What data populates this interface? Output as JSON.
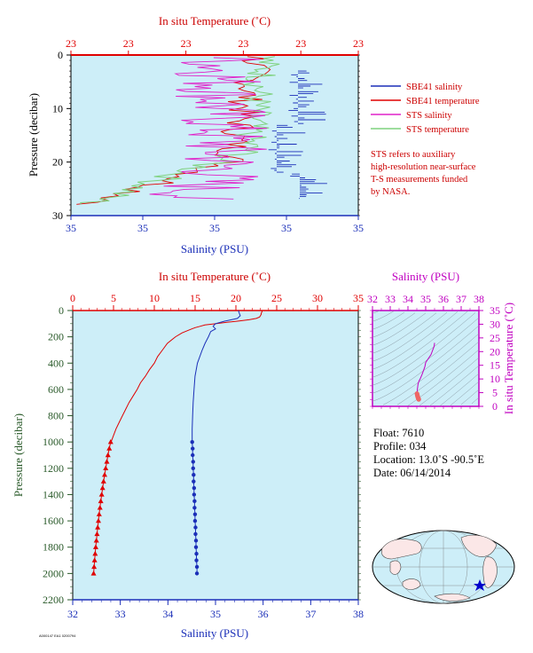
{
  "colors": {
    "plot_bg": "#cdeef8",
    "salinity": "#1b2fb8",
    "temperature": "#e00000",
    "sts_salinity": "#e020c8",
    "sts_temperature": "#7fd27f",
    "ts_accent": "#c000c0",
    "ts_point": "#ee6666"
  },
  "chart_data": [
    {
      "id": "near-surface",
      "type": "line",
      "top_axis_title": "In situ Temperature (˚C)",
      "top_ticks": [
        "23",
        "23",
        "23",
        "23",
        "23",
        "23"
      ],
      "bottom_axis_title": "Salinity (PSU)",
      "bottom_ticks": [
        "35",
        "35",
        "35",
        "35",
        "35"
      ],
      "ylabel": "Pressure (decibar)",
      "y_ticks": [
        "0",
        "10",
        "20",
        "30"
      ],
      "ylim": [
        0,
        30
      ],
      "y_inverted": true,
      "grid": false,
      "legend_position": "right",
      "series": [
        {
          "name": "SBE41 salinity",
          "role": "sbe_salinity"
        },
        {
          "name": "SBE41 temperature",
          "role": "sbe_temperature"
        },
        {
          "name": "STS salinity",
          "role": "sts_salinity"
        },
        {
          "name": "STS temperature",
          "role": "sts_temperature"
        }
      ],
      "annotation": [
        "STS refers to auxiliary",
        "high-resolution near-surface",
        "T-S measurements funded",
        "by NASA."
      ]
    },
    {
      "id": "profile",
      "type": "line",
      "top_axis_title": "In situ Temperature (˚C)",
      "top_ticks": [
        "0",
        "5",
        "10",
        "15",
        "20",
        "25",
        "30",
        "35"
      ],
      "temp_range": [
        0,
        35
      ],
      "bottom_axis_title": "Salinity (PSU)",
      "bottom_ticks": [
        "32",
        "33",
        "34",
        "35",
        "36",
        "37",
        "38"
      ],
      "sal_range": [
        32,
        38
      ],
      "ylabel": "Pressure (decibar)",
      "y_ticks": [
        "0",
        "200",
        "400",
        "600",
        "800",
        "1000",
        "1200",
        "1400",
        "1600",
        "1800",
        "2000",
        "2200"
      ],
      "ylim": [
        0,
        2200
      ],
      "y_inverted": true,
      "grid": false,
      "temperature_line": {
        "pressure": [
          0,
          10,
          20,
          30,
          40,
          50,
          60,
          70,
          80,
          90,
          100,
          110,
          120,
          130,
          140,
          150,
          170,
          200,
          250,
          300,
          350,
          400,
          450,
          500,
          550,
          600,
          650,
          700,
          750,
          800,
          850,
          900,
          950,
          1000
        ],
        "temperature": [
          23.2,
          23.2,
          23.1,
          23.1,
          23.0,
          22.9,
          22.5,
          21.6,
          20.3,
          18.9,
          17.6,
          16.2,
          15.6,
          15.0,
          14.6,
          14.2,
          13.4,
          12.6,
          11.6,
          11.0,
          10.4,
          10.0,
          9.4,
          8.9,
          8.3,
          7.9,
          7.4,
          6.9,
          6.5,
          6.1,
          5.7,
          5.3,
          5.0,
          4.7
        ]
      },
      "temperature_points": {
        "pressure": [
          1000,
          1050,
          1100,
          1150,
          1200,
          1250,
          1300,
          1350,
          1400,
          1450,
          1500,
          1550,
          1600,
          1650,
          1700,
          1750,
          1800,
          1850,
          1900,
          1950,
          2000
        ],
        "temperature": [
          4.65,
          4.48,
          4.32,
          4.18,
          4.04,
          3.91,
          3.78,
          3.66,
          3.55,
          3.44,
          3.34,
          3.24,
          3.15,
          3.06,
          2.98,
          2.9,
          2.82,
          2.75,
          2.68,
          2.62,
          2.56
        ]
      },
      "salinity_line": {
        "pressure": [
          0,
          20,
          40,
          60,
          80,
          100,
          120,
          140,
          160,
          200,
          250,
          300,
          400,
          500,
          600,
          700,
          800,
          900,
          1000
        ],
        "salinity": [
          35.48,
          35.5,
          35.52,
          35.46,
          35.2,
          35.0,
          34.95,
          35.0,
          34.9,
          34.85,
          34.78,
          34.72,
          34.62,
          34.57,
          34.55,
          34.53,
          34.52,
          34.51,
          34.51
        ]
      },
      "salinity_points": {
        "pressure": [
          1000,
          1050,
          1100,
          1150,
          1200,
          1250,
          1300,
          1350,
          1400,
          1450,
          1500,
          1550,
          1600,
          1650,
          1700,
          1750,
          1800,
          1850,
          1900,
          1950,
          2000
        ],
        "salinity": [
          34.51,
          34.52,
          34.52,
          34.53,
          34.53,
          34.54,
          34.54,
          34.55,
          34.55,
          34.56,
          34.56,
          34.57,
          34.57,
          34.58,
          34.58,
          34.59,
          34.59,
          34.6,
          34.6,
          34.61,
          34.61
        ]
      }
    },
    {
      "id": "ts-diagram",
      "type": "line",
      "top_axis_title": "Salinity (PSU)",
      "top_ticks": [
        "32",
        "33",
        "34",
        "35",
        "36",
        "37",
        "38"
      ],
      "sal_range": [
        32,
        38
      ],
      "right_axis_title": "In situ Temperature (˚C)",
      "right_ticks": [
        "0",
        "5",
        "10",
        "15",
        "20",
        "25",
        "30",
        "35"
      ],
      "temp_range": [
        0,
        35
      ],
      "ts_line": {
        "salinity": [
          35.5,
          35.48,
          35.3,
          35.0,
          34.95,
          34.85,
          34.78,
          34.7,
          34.62,
          34.57,
          34.55,
          34.53,
          34.52,
          34.51
        ],
        "temperature": [
          23.2,
          22.0,
          18.9,
          16.0,
          14.4,
          12.6,
          11.4,
          10.2,
          9.2,
          8.2,
          7.2,
          6.2,
          5.3,
          4.7
        ]
      },
      "ts_points": {
        "salinity": [
          34.51,
          34.52,
          34.53,
          34.54,
          34.55,
          34.56,
          34.57,
          34.58,
          34.59,
          34.6,
          34.61
        ],
        "temperature": [
          4.65,
          4.32,
          4.04,
          3.78,
          3.55,
          3.34,
          3.15,
          2.98,
          2.82,
          2.68,
          2.56
        ]
      }
    }
  ],
  "float_info": {
    "float": "Float:  7610",
    "profile": "Profile:  034",
    "location": "Location:  13.0˚S  -90.5˚E",
    "date": "Date:  06/14/2014"
  },
  "footer_code": "A000147 EA1 0200794"
}
